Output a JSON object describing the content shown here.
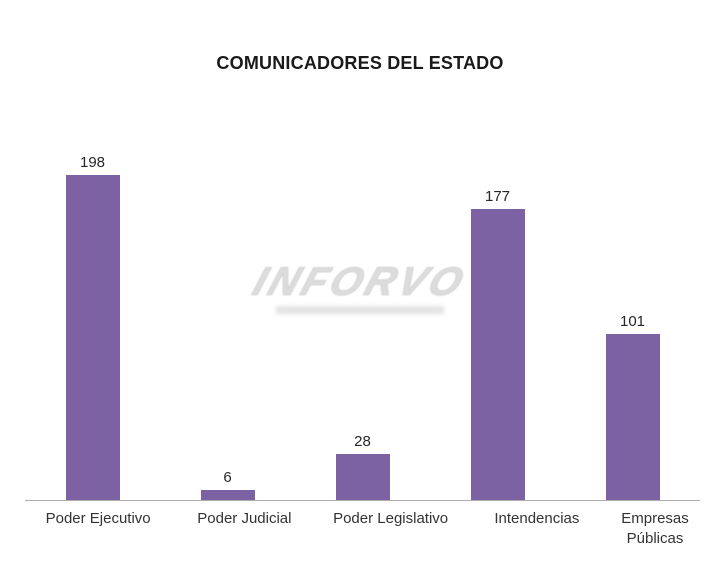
{
  "watermark": {
    "text": "INFORVO"
  },
  "colors": {
    "bar": "#7d62a3",
    "baseline": "#adadad",
    "title_text": "#1a1a1a",
    "value_label_text": "#262626",
    "axis_label_text": "#333333",
    "watermark_gray": "#d2d2d2",
    "background": "#ffffff"
  },
  "chart_data": {
    "type": "bar",
    "title": "COMUNICADORES DEL ESTADO",
    "categories": [
      "Poder Ejecutivo",
      "Poder Judicial",
      "Poder Legislativo",
      "Intendencias",
      "Empresas Públicas"
    ],
    "values": [
      198,
      6,
      28,
      177,
      101
    ],
    "xlabel": "",
    "ylabel": "",
    "ylim": [
      0,
      198
    ],
    "grid": false,
    "legend": false,
    "data_labels": true,
    "bar_color": "#7d62a3",
    "axis_line_color": "#adadad"
  }
}
